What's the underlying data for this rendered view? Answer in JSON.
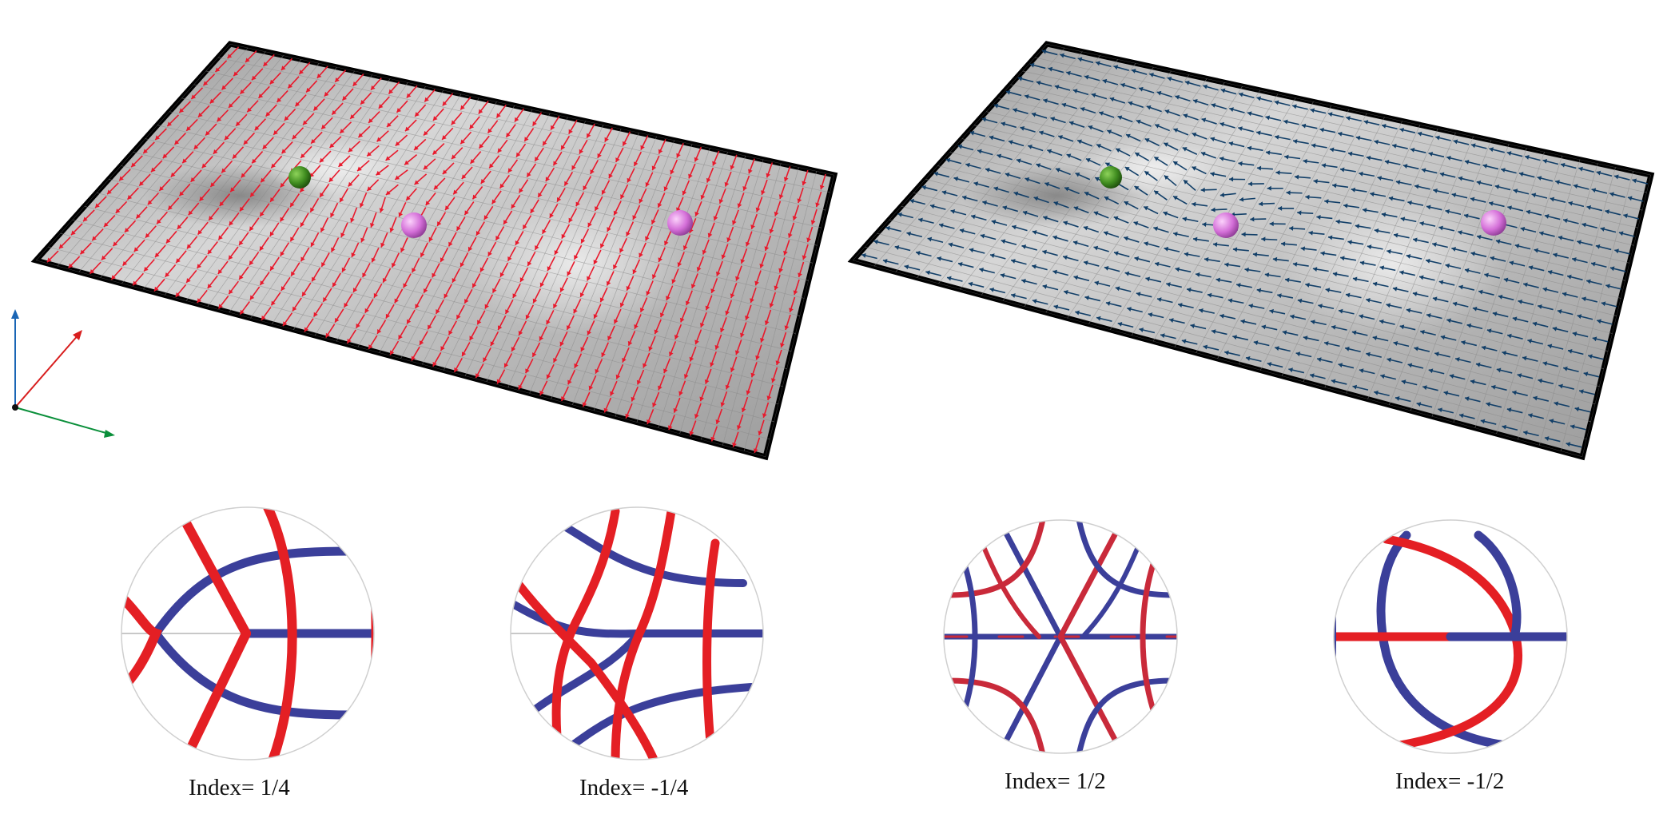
{
  "figure": {
    "panels": [
      {
        "id": "left",
        "field_color": "#e8192c",
        "direction": "vertical"
      },
      {
        "id": "right",
        "field_color": "#123f68",
        "direction": "horizontal"
      }
    ],
    "axes_colors": {
      "x": "#0a8f3a",
      "y": "#d81e1e",
      "z": "#1a66b5"
    },
    "singularity_colors": {
      "green": "#3f8c1f",
      "pink": "#d46fd8"
    },
    "streamline_colors": {
      "red": "#e41f24",
      "blue": "#3b3f9a"
    },
    "insets": [
      {
        "label": "Index= 1/4"
      },
      {
        "label": "Index= -1/4"
      },
      {
        "label": "Index= 1/2"
      },
      {
        "label": "Index= -1/2"
      }
    ]
  }
}
